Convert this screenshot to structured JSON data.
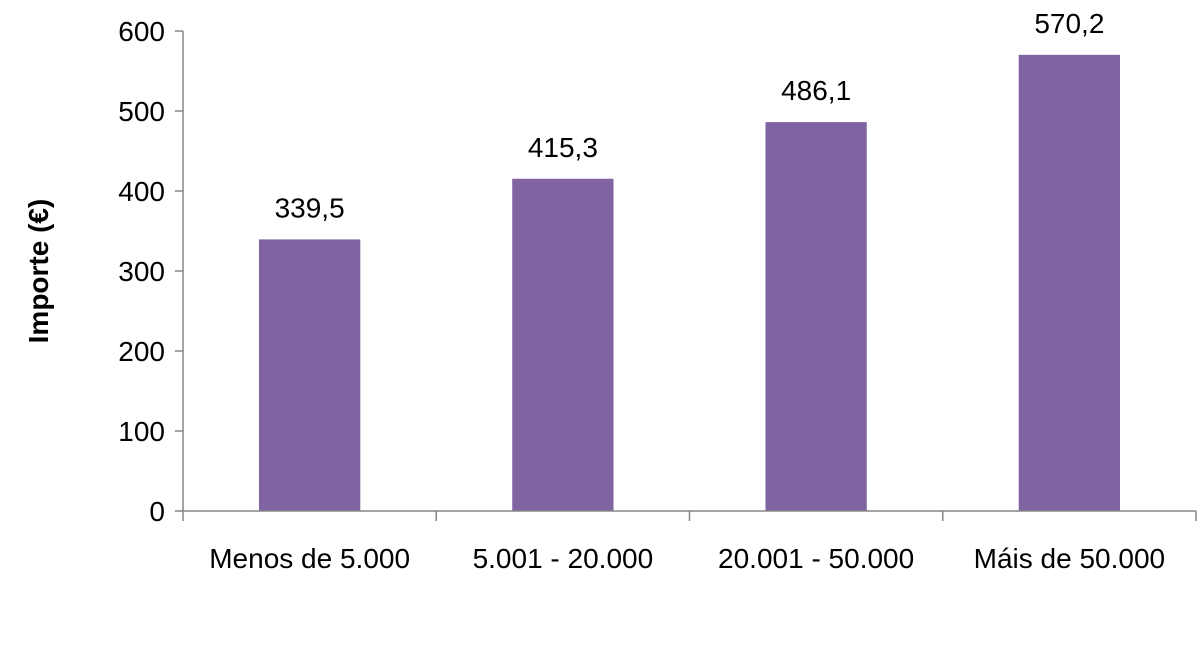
{
  "chart_data": {
    "type": "bar",
    "title": "",
    "xlabel": "",
    "ylabel": "Importe (€)",
    "categories": [
      "Menos de 5.000",
      "5.001 - 20.000",
      "20.001 - 50.000",
      "Máis de 50.000"
    ],
    "values": [
      339.5,
      415.3,
      486.1,
      570.2
    ],
    "data_labels": [
      "339,5",
      "415,3",
      "486,1",
      "570,2"
    ],
    "ylim": [
      0,
      600
    ],
    "yticks": [
      0,
      100,
      200,
      300,
      400,
      500,
      600
    ],
    "grid": false,
    "legend": "none",
    "colors": {
      "bar": "#8064A2"
    }
  }
}
